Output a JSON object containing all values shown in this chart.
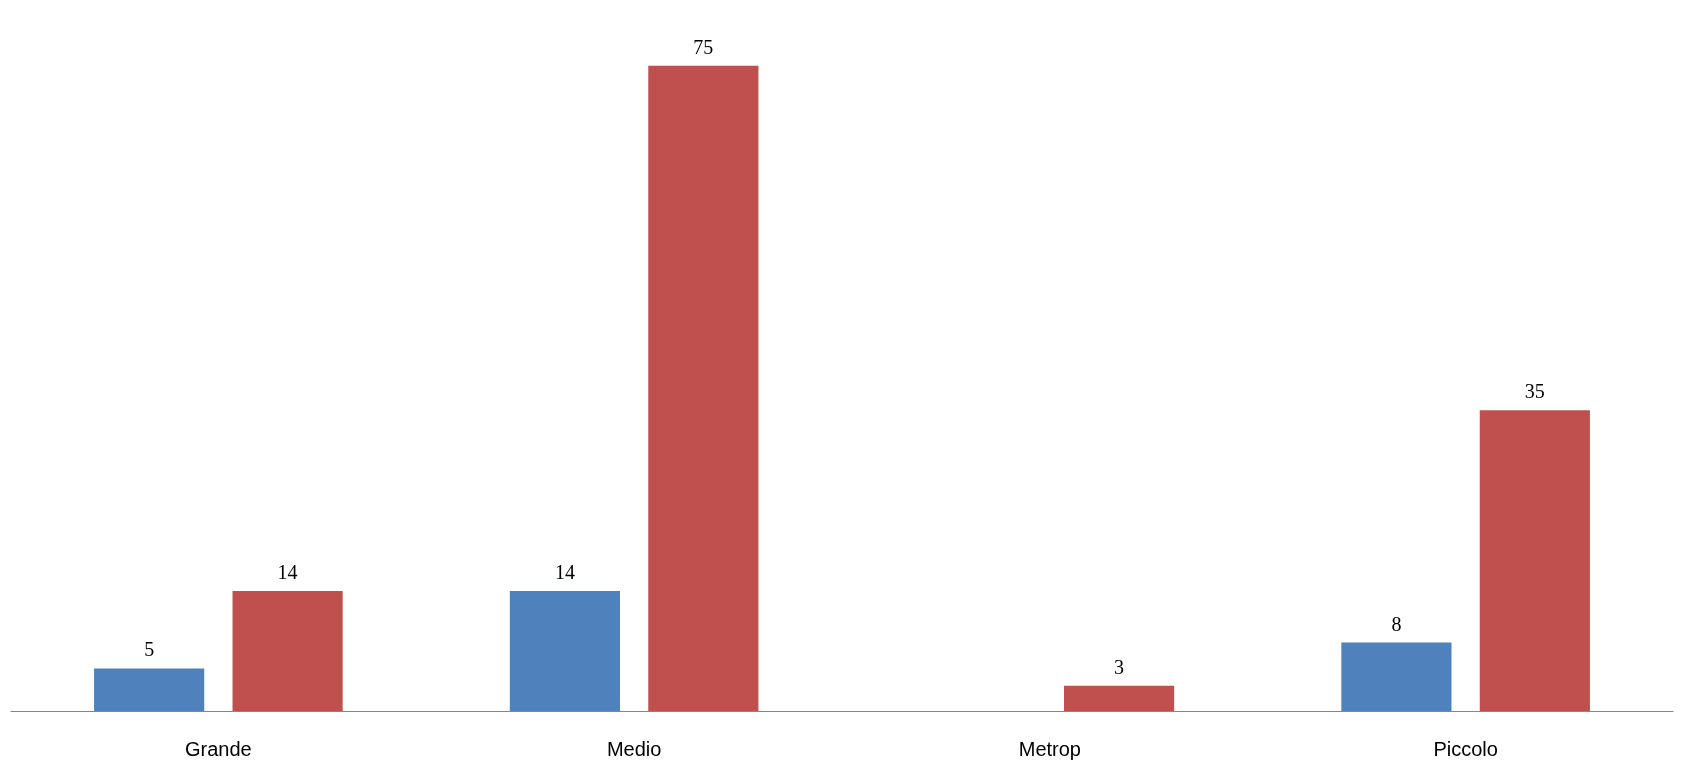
{
  "chart_data": {
    "type": "bar",
    "categories": [
      "Grande",
      "Medio",
      "Metrop",
      "Piccolo"
    ],
    "series": [
      {
        "color": "#4f81bd",
        "values": [
          5,
          14,
          null,
          8
        ]
      },
      {
        "color": "#c0504d",
        "values": [
          14,
          75,
          3,
          35
        ]
      }
    ],
    "data_labels": true,
    "tick_labels": "x"
  }
}
